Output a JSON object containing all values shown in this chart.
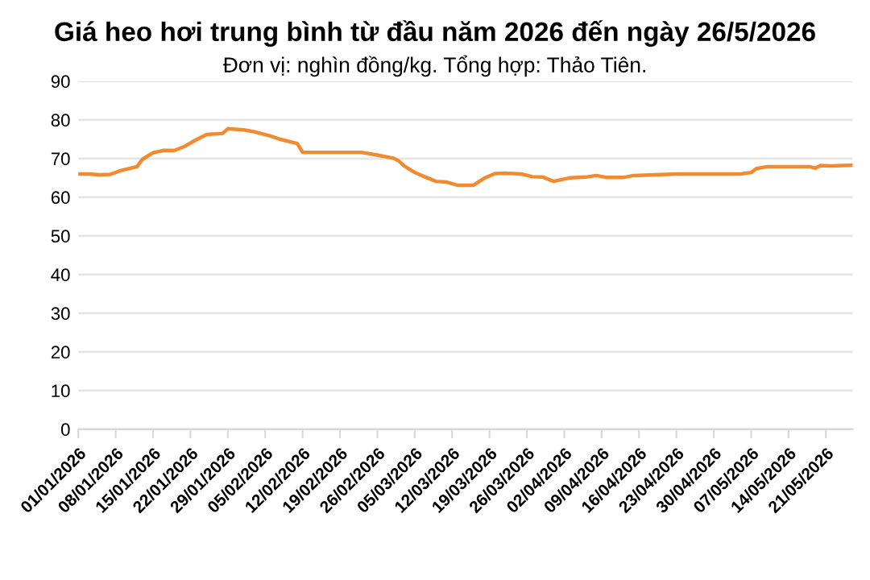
{
  "chart_data": {
    "type": "line",
    "title": "Giá heo hơi trung bình từ đầu năm 2026 đến ngày 26/5/2026",
    "subtitle": "Đơn vị: nghìn đồng/kg. Tổng hợp: Thảo Tiên.",
    "x": [
      "2026-01-01",
      "2026-01-03",
      "2026-01-05",
      "2026-01-07",
      "2026-01-09",
      "2026-01-12",
      "2026-01-13",
      "2026-01-15",
      "2026-01-17",
      "2026-01-19",
      "2026-01-21",
      "2026-01-23",
      "2026-01-25",
      "2026-01-28",
      "2026-01-29",
      "2026-02-01",
      "2026-02-03",
      "2026-02-06",
      "2026-02-08",
      "2026-02-11",
      "2026-02-12",
      "2026-02-14",
      "2026-02-23",
      "2026-02-26",
      "2026-03-01",
      "2026-03-02",
      "2026-03-03",
      "2026-03-05",
      "2026-03-07",
      "2026-03-09",
      "2026-03-11",
      "2026-03-13",
      "2026-03-16",
      "2026-03-18",
      "2026-03-20",
      "2026-03-22",
      "2026-03-25",
      "2026-03-27",
      "2026-03-29",
      "2026-03-31",
      "2026-04-03",
      "2026-04-06",
      "2026-04-08",
      "2026-04-10",
      "2026-04-13",
      "2026-04-15",
      "2026-04-23",
      "2026-05-05",
      "2026-05-07",
      "2026-05-08",
      "2026-05-10",
      "2026-05-18",
      "2026-05-19",
      "2026-05-20",
      "2026-05-22",
      "2026-05-26"
    ],
    "series": [
      {
        "color": "#f28a30",
        "values": [
          66.0,
          66.0,
          65.8,
          65.9,
          66.9,
          67.9,
          69.8,
          71.5,
          72.1,
          72.1,
          73.2,
          74.8,
          76.2,
          76.5,
          77.7,
          77.4,
          76.9,
          75.8,
          74.9,
          73.9,
          71.6,
          71.6,
          71.6,
          70.9,
          70.1,
          69.4,
          68.1,
          66.4,
          65.2,
          64.1,
          63.9,
          63.1,
          63.1,
          64.9,
          66.1,
          66.2,
          66.0,
          65.3,
          65.2,
          64.1,
          65.0,
          65.2,
          65.6,
          65.1,
          65.1,
          65.6,
          66.0,
          66.0,
          66.4,
          67.4,
          67.9,
          67.9,
          67.5,
          68.2,
          68.1,
          68.3
        ]
      }
    ],
    "xlim": [
      "2026-01-01",
      "2026-05-26"
    ],
    "xticks": [
      {
        "value": "2026-01-01",
        "label": "01/01/2026"
      },
      {
        "value": "2026-01-08",
        "label": "08/01/2026"
      },
      {
        "value": "2026-01-15",
        "label": "15/01/2026"
      },
      {
        "value": "2026-01-22",
        "label": "22/01/2026"
      },
      {
        "value": "2026-01-29",
        "label": "29/01/2026"
      },
      {
        "value": "2026-02-05",
        "label": "05/02/2026"
      },
      {
        "value": "2026-02-12",
        "label": "12/02/2026"
      },
      {
        "value": "2026-02-19",
        "label": "19/02/2026"
      },
      {
        "value": "2026-02-26",
        "label": "26/02/2026"
      },
      {
        "value": "2026-03-05",
        "label": "05/03/2026"
      },
      {
        "value": "2026-03-12",
        "label": "12/03/2026"
      },
      {
        "value": "2026-03-19",
        "label": "19/03/2026"
      },
      {
        "value": "2026-03-26",
        "label": "26/03/2026"
      },
      {
        "value": "2026-04-02",
        "label": "02/04/2026"
      },
      {
        "value": "2026-04-09",
        "label": "09/04/2026"
      },
      {
        "value": "2026-04-16",
        "label": "16/04/2026"
      },
      {
        "value": "2026-04-23",
        "label": "23/04/2026"
      },
      {
        "value": "2026-04-30",
        "label": "30/04/2026"
      },
      {
        "value": "2026-05-07",
        "label": "07/05/2026"
      },
      {
        "value": "2026-05-14",
        "label": "14/05/2026"
      },
      {
        "value": "2026-05-21",
        "label": "21/05/2026"
      }
    ],
    "ylim": [
      0,
      90
    ],
    "yticks": [
      0,
      10,
      20,
      30,
      40,
      50,
      60,
      70,
      80,
      90
    ],
    "grid": "y",
    "marker": "none",
    "line_style": "solid"
  }
}
